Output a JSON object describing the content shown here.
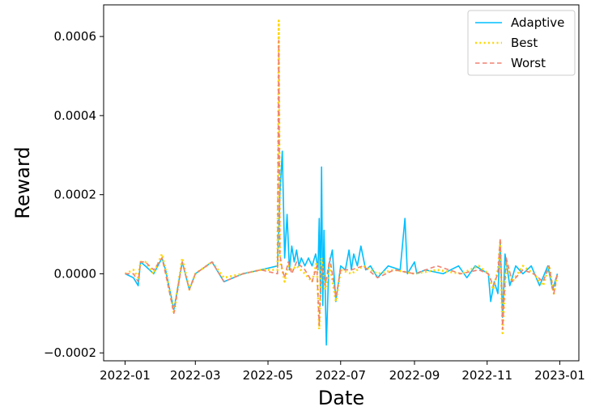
{
  "chart_data": {
    "type": "line",
    "xlabel": "Date",
    "ylabel": "Reward",
    "xlim": [
      "2021-12-14",
      "2023-01-17"
    ],
    "ylim": [
      -0.00022,
      0.00068
    ],
    "x_ticks": [
      "2022-01",
      "2022-03",
      "2022-05",
      "2022-07",
      "2022-09",
      "2022-11",
      "2023-01"
    ],
    "y_ticks": [
      -0.0002,
      0.0,
      0.0002,
      0.0004,
      0.0006
    ],
    "y_tick_labels": [
      "−0.0002",
      "0.0000",
      "0.0002",
      "0.0004",
      "0.0006"
    ],
    "legend_position": "top-right",
    "series": [
      {
        "name": "Adaptive",
        "color": "#00bfff",
        "style": "solid",
        "points": [
          [
            "2022-01-01",
            0.0
          ],
          [
            "2022-01-08",
            -1e-05
          ],
          [
            "2022-01-12",
            -3e-05
          ],
          [
            "2022-01-14",
            3e-05
          ],
          [
            "2022-01-18",
            2e-05
          ],
          [
            "2022-01-25",
            0.0
          ],
          [
            "2022-02-01",
            4e-05
          ],
          [
            "2022-02-04",
            1e-05
          ],
          [
            "2022-02-11",
            -9e-05
          ],
          [
            "2022-02-18",
            3e-05
          ],
          [
            "2022-02-24",
            -4e-05
          ],
          [
            "2022-03-01",
            0.0
          ],
          [
            "2022-03-15",
            3e-05
          ],
          [
            "2022-03-25",
            -2e-05
          ],
          [
            "2022-04-10",
            0.0
          ],
          [
            "2022-04-25",
            1e-05
          ],
          [
            "2022-05-09",
            2e-05
          ],
          [
            "2022-05-11",
            0.0002
          ],
          [
            "2022-05-13",
            0.00031
          ],
          [
            "2022-05-15",
            4e-05
          ],
          [
            "2022-05-17",
            0.00015
          ],
          [
            "2022-05-19",
            1e-05
          ],
          [
            "2022-05-21",
            7e-05
          ],
          [
            "2022-05-23",
            3e-05
          ],
          [
            "2022-05-25",
            6e-05
          ],
          [
            "2022-05-27",
            2e-05
          ],
          [
            "2022-05-29",
            4e-05
          ],
          [
            "2022-06-01",
            2e-05
          ],
          [
            "2022-06-04",
            4e-05
          ],
          [
            "2022-06-07",
            2e-05
          ],
          [
            "2022-06-10",
            5e-05
          ],
          [
            "2022-06-12",
            1e-05
          ],
          [
            "2022-06-13",
            0.00014
          ],
          [
            "2022-06-14",
            -5e-05
          ],
          [
            "2022-06-15",
            0.00027
          ],
          [
            "2022-06-16",
            -8e-05
          ],
          [
            "2022-06-17",
            0.00011
          ],
          [
            "2022-06-19",
            -0.00018
          ],
          [
            "2022-06-21",
            2e-05
          ],
          [
            "2022-06-24",
            6e-05
          ],
          [
            "2022-06-27",
            -7e-05
          ],
          [
            "2022-07-01",
            2e-05
          ],
          [
            "2022-07-05",
            1e-05
          ],
          [
            "2022-07-08",
            6e-05
          ],
          [
            "2022-07-10",
            1e-05
          ],
          [
            "2022-07-12",
            5e-05
          ],
          [
            "2022-07-15",
            2e-05
          ],
          [
            "2022-07-18",
            7e-05
          ],
          [
            "2022-07-22",
            1e-05
          ],
          [
            "2022-07-26",
            2e-05
          ],
          [
            "2022-08-01",
            -1e-05
          ],
          [
            "2022-08-10",
            2e-05
          ],
          [
            "2022-08-20",
            1e-05
          ],
          [
            "2022-08-24",
            0.00014
          ],
          [
            "2022-08-26",
            0.0
          ],
          [
            "2022-09-01",
            3e-05
          ],
          [
            "2022-09-03",
            0.0
          ],
          [
            "2022-09-10",
            1e-05
          ],
          [
            "2022-09-25",
            0.0
          ],
          [
            "2022-10-08",
            2e-05
          ],
          [
            "2022-10-15",
            -1e-05
          ],
          [
            "2022-10-22",
            2e-05
          ],
          [
            "2022-11-02",
            0.0
          ],
          [
            "2022-11-04",
            -7e-05
          ],
          [
            "2022-11-07",
            -2e-05
          ],
          [
            "2022-11-10",
            -5e-05
          ],
          [
            "2022-11-12",
            8e-05
          ],
          [
            "2022-11-14",
            -0.00011
          ],
          [
            "2022-11-16",
            5e-05
          ],
          [
            "2022-11-20",
            -3e-05
          ],
          [
            "2022-11-25",
            2e-05
          ],
          [
            "2022-12-01",
            0.0
          ],
          [
            "2022-12-08",
            2e-05
          ],
          [
            "2022-12-15",
            -3e-05
          ],
          [
            "2022-12-22",
            2e-05
          ],
          [
            "2022-12-26",
            -4e-05
          ],
          [
            "2022-12-30",
            0.0
          ]
        ]
      },
      {
        "name": "Best",
        "color": "#ffd700",
        "style": "dotted",
        "points": [
          [
            "2022-01-01",
            0.0
          ],
          [
            "2022-01-08",
            1e-05
          ],
          [
            "2022-01-12",
            -1e-05
          ],
          [
            "2022-01-14",
            3e-05
          ],
          [
            "2022-01-18",
            3e-05
          ],
          [
            "2022-01-25",
            0.0
          ],
          [
            "2022-02-01",
            5e-05
          ],
          [
            "2022-02-04",
            1e-05
          ],
          [
            "2022-02-11",
            -0.0001
          ],
          [
            "2022-02-18",
            4e-05
          ],
          [
            "2022-02-24",
            -4e-05
          ],
          [
            "2022-03-01",
            0.0
          ],
          [
            "2022-03-15",
            3e-05
          ],
          [
            "2022-03-25",
            -1e-05
          ],
          [
            "2022-04-10",
            0.0
          ],
          [
            "2022-04-25",
            1e-05
          ],
          [
            "2022-05-09",
            1e-05
          ],
          [
            "2022-05-10",
            0.00064
          ],
          [
            "2022-05-11",
            3e-05
          ],
          [
            "2022-05-13",
            1e-05
          ],
          [
            "2022-05-15",
            -2e-05
          ],
          [
            "2022-05-18",
            2e-05
          ],
          [
            "2022-05-21",
            1e-05
          ],
          [
            "2022-05-25",
            2e-05
          ],
          [
            "2022-06-01",
            0.0
          ],
          [
            "2022-06-07",
            -2e-05
          ],
          [
            "2022-06-11",
            3e-05
          ],
          [
            "2022-06-13",
            -0.00014
          ],
          [
            "2022-06-15",
            4e-05
          ],
          [
            "2022-06-18",
            -4e-05
          ],
          [
            "2022-06-22",
            2e-05
          ],
          [
            "2022-06-27",
            -7e-05
          ],
          [
            "2022-07-01",
            1e-05
          ],
          [
            "2022-07-10",
            0.0
          ],
          [
            "2022-07-20",
            2e-05
          ],
          [
            "2022-08-01",
            0.0
          ],
          [
            "2022-08-15",
            1e-05
          ],
          [
            "2022-09-01",
            0.0
          ],
          [
            "2022-09-20",
            1e-05
          ],
          [
            "2022-10-10",
            0.0
          ],
          [
            "2022-10-25",
            2e-05
          ],
          [
            "2022-11-02",
            0.0
          ],
          [
            "2022-11-06",
            -4e-05
          ],
          [
            "2022-11-10",
            1e-05
          ],
          [
            "2022-11-12",
            8e-05
          ],
          [
            "2022-11-14",
            -0.00015
          ],
          [
            "2022-11-17",
            3e-05
          ],
          [
            "2022-11-22",
            -2e-05
          ],
          [
            "2022-12-01",
            2e-05
          ],
          [
            "2022-12-10",
            0.0
          ],
          [
            "2022-12-18",
            -3e-05
          ],
          [
            "2022-12-23",
            2e-05
          ],
          [
            "2022-12-27",
            -5e-05
          ],
          [
            "2022-12-30",
            0.0
          ]
        ]
      },
      {
        "name": "Worst",
        "color": "#f08070",
        "style": "dashed",
        "points": [
          [
            "2022-01-01",
            0.0
          ],
          [
            "2022-01-08",
            0.0
          ],
          [
            "2022-01-12",
            -2e-05
          ],
          [
            "2022-01-14",
            3e-05
          ],
          [
            "2022-01-18",
            3e-05
          ],
          [
            "2022-01-25",
            1e-05
          ],
          [
            "2022-02-01",
            4e-05
          ],
          [
            "2022-02-04",
            0.0
          ],
          [
            "2022-02-11",
            -0.0001
          ],
          [
            "2022-02-18",
            3e-05
          ],
          [
            "2022-02-24",
            -4e-05
          ],
          [
            "2022-03-01",
            0.0
          ],
          [
            "2022-03-15",
            3e-05
          ],
          [
            "2022-03-25",
            -2e-05
          ],
          [
            "2022-04-10",
            0.0
          ],
          [
            "2022-04-25",
            1e-05
          ],
          [
            "2022-05-09",
            0.0
          ],
          [
            "2022-05-10",
            0.00059
          ],
          [
            "2022-05-11",
            5e-05
          ],
          [
            "2022-05-13",
            1e-05
          ],
          [
            "2022-05-15",
            -1e-05
          ],
          [
            "2022-05-18",
            3e-05
          ],
          [
            "2022-05-21",
            0.0
          ],
          [
            "2022-05-25",
            3e-05
          ],
          [
            "2022-06-01",
            1e-05
          ],
          [
            "2022-06-07",
            -2e-05
          ],
          [
            "2022-06-11",
            2e-05
          ],
          [
            "2022-06-13",
            -0.00013
          ],
          [
            "2022-06-15",
            2e-05
          ],
          [
            "2022-06-18",
            -3e-05
          ],
          [
            "2022-06-22",
            4e-05
          ],
          [
            "2022-06-27",
            -6e-05
          ],
          [
            "2022-07-01",
            1e-05
          ],
          [
            "2022-07-10",
            1e-05
          ],
          [
            "2022-07-20",
            2e-05
          ],
          [
            "2022-08-01",
            -1e-05
          ],
          [
            "2022-08-15",
            1e-05
          ],
          [
            "2022-09-01",
            0.0
          ],
          [
            "2022-09-20",
            2e-05
          ],
          [
            "2022-10-10",
            0.0
          ],
          [
            "2022-10-25",
            1e-05
          ],
          [
            "2022-11-02",
            0.0
          ],
          [
            "2022-11-06",
            -3e-05
          ],
          [
            "2022-11-10",
            0.0
          ],
          [
            "2022-11-12",
            9e-05
          ],
          [
            "2022-11-14",
            -0.00014
          ],
          [
            "2022-11-17",
            4e-05
          ],
          [
            "2022-11-22",
            -2e-05
          ],
          [
            "2022-12-01",
            1e-05
          ],
          [
            "2022-12-10",
            0.0
          ],
          [
            "2022-12-18",
            -2e-05
          ],
          [
            "2022-12-23",
            2e-05
          ],
          [
            "2022-12-27",
            -5e-05
          ],
          [
            "2022-12-30",
            0.0
          ]
        ]
      }
    ]
  }
}
